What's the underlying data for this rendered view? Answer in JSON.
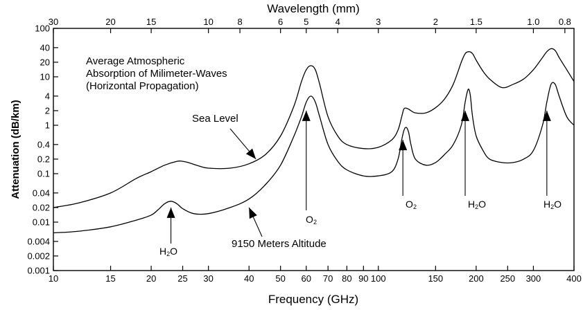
{
  "chart_data": {
    "type": "line",
    "title": "",
    "xlabel": "Frequency (GHz)",
    "x2label": "Wavelength (mm)",
    "ylabel": "Attenuation (dB/km)",
    "xscale": "log",
    "yscale": "log",
    "xlim": [
      10,
      400
    ],
    "ylim": [
      0.001,
      100
    ],
    "grid": false,
    "x_ticks": [
      10,
      15,
      20,
      25,
      30,
      40,
      50,
      60,
      70,
      80,
      90,
      100,
      150,
      200,
      250,
      300,
      400
    ],
    "x_tick_labels": [
      "10",
      "15",
      "20",
      "25",
      "30",
      "40",
      "50",
      "60",
      "70",
      "80",
      "90",
      "100",
      "150",
      "200",
      "250",
      "300",
      "400"
    ],
    "x2_ticks": [
      30,
      20,
      15,
      10,
      8,
      6,
      5,
      4,
      3,
      2,
      1.5,
      1.0,
      0.8
    ],
    "x2_tick_labels": [
      "30",
      "20",
      "15",
      "10",
      "8",
      "6",
      "5",
      "4",
      "3",
      "2",
      "1.5",
      "1.0",
      "0.8"
    ],
    "y_ticks": [
      0.001,
      0.002,
      0.004,
      0.01,
      0.02,
      0.04,
      0.1,
      0.2,
      0.4,
      1,
      2,
      4,
      10,
      20,
      40,
      100
    ],
    "y_tick_labels": [
      "0.001",
      "0.002",
      "0.004",
      "0.01",
      "0.02",
      "0.04",
      "0.1",
      "0.2",
      "0.4",
      "1",
      "2",
      "4",
      "10",
      "20",
      "40",
      "100"
    ],
    "series": [
      {
        "name": "Sea Level",
        "x": [
          10,
          12,
          15,
          18,
          20,
          22,
          24,
          25,
          26,
          28,
          30,
          35,
          40,
          45,
          50,
          55,
          58,
          60,
          62,
          64,
          66,
          70,
          75,
          80,
          90,
          100,
          110,
          115,
          118,
          120,
          123,
          126,
          130,
          140,
          150,
          160,
          170,
          180,
          185,
          190,
          195,
          200,
          210,
          220,
          240,
          260,
          280,
          300,
          320,
          330,
          340,
          350,
          360,
          380,
          400
        ],
        "y": [
          0.02,
          0.025,
          0.04,
          0.08,
          0.11,
          0.15,
          0.18,
          0.18,
          0.17,
          0.145,
          0.13,
          0.13,
          0.16,
          0.25,
          0.6,
          2.5,
          8,
          14,
          17,
          14,
          7,
          1.5,
          0.6,
          0.4,
          0.33,
          0.35,
          0.5,
          0.8,
          1.5,
          2.2,
          2.2,
          2,
          1.8,
          1.8,
          2.3,
          3.5,
          7,
          20,
          30,
          33,
          30,
          22,
          13,
          9,
          6,
          7,
          9,
          14,
          25,
          33,
          38,
          35,
          25,
          14,
          8
        ]
      },
      {
        "name": "9150 Meters Altitude",
        "x": [
          10,
          12,
          15,
          18,
          20,
          21,
          22,
          23,
          24,
          25,
          27,
          30,
          35,
          40,
          45,
          50,
          55,
          58,
          60,
          62,
          64,
          66,
          70,
          75,
          80,
          90,
          100,
          110,
          115,
          118,
          120,
          122,
          124,
          126,
          130,
          140,
          150,
          160,
          170,
          180,
          185,
          188,
          190,
          192,
          195,
          200,
          210,
          220,
          240,
          260,
          280,
          300,
          320,
          330,
          340,
          350,
          360,
          380,
          400
        ],
        "y": [
          0.006,
          0.0065,
          0.008,
          0.011,
          0.014,
          0.018,
          0.024,
          0.027,
          0.024,
          0.019,
          0.015,
          0.015,
          0.02,
          0.03,
          0.06,
          0.15,
          0.6,
          1.5,
          3,
          4,
          3,
          1.5,
          0.4,
          0.18,
          0.12,
          0.09,
          0.09,
          0.11,
          0.2,
          0.5,
          0.8,
          0.9,
          0.7,
          0.4,
          0.2,
          0.15,
          0.17,
          0.25,
          0.4,
          1,
          3,
          5,
          5.5,
          4,
          1.5,
          0.6,
          0.3,
          0.2,
          0.17,
          0.17,
          0.2,
          0.3,
          1,
          3,
          7,
          7,
          4,
          1.5,
          1
        ]
      }
    ],
    "annotations": [
      {
        "text": "Average Atmospheric",
        "placement": "upper-left"
      },
      {
        "text": "Absorption of Milimeter-Waves",
        "placement": "upper-left"
      },
      {
        "text": "(Horizontal Propagation)",
        "placement": "upper-left"
      },
      {
        "text": "Sea Level",
        "points_to": {
          "x": 42,
          "y": 0.2
        }
      },
      {
        "text": "9150 Meters Altitude",
        "points_to": {
          "x": 40,
          "y": 0.02
        }
      },
      {
        "text": "H",
        "sub": "2",
        "tail": "O",
        "points_to": {
          "x": 23,
          "y": 0.02
        }
      },
      {
        "text": "O",
        "sub": "2",
        "tail": "",
        "points_to": {
          "x": 60,
          "y": 2
        }
      },
      {
        "text": "O",
        "sub": "2",
        "tail": "",
        "points_to": {
          "x": 119,
          "y": 0.5
        }
      },
      {
        "text": "H",
        "sub": "2",
        "tail": "O",
        "points_to": {
          "x": 185,
          "y": 2
        }
      },
      {
        "text": "H",
        "sub": "2",
        "tail": "O",
        "points_to": {
          "x": 330,
          "y": 2
        }
      }
    ]
  }
}
